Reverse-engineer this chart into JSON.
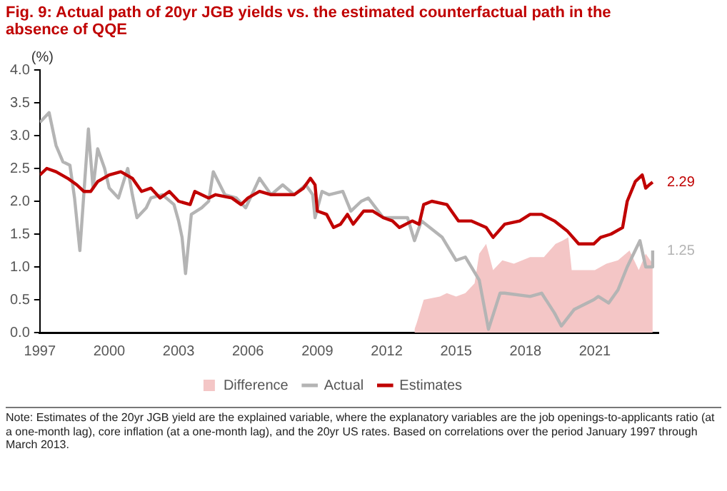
{
  "chart_data": {
    "type": "line",
    "title": "Fig. 9: Actual path of 20yr JGB yields vs. the estimated counterfactual path in the absence of QQE",
    "ylabel": "(%)",
    "xlim": [
      1997,
      2023.75
    ],
    "xticks": [
      1997,
      2000,
      2003,
      2006,
      2009,
      2012,
      2015,
      2018,
      2021
    ],
    "ylim": [
      0,
      4
    ],
    "yticks": [
      {
        "value": 0,
        "label": "0.0"
      },
      0.5,
      {
        "value": 1,
        "label": "1.0"
      },
      1.5,
      {
        "value": 2,
        "label": "2.0"
      },
      2.5,
      {
        "value": 3,
        "label": "3.0"
      },
      3.5,
      {
        "value": 4,
        "label": "4.0"
      }
    ],
    "grid": false,
    "legend": "bottom",
    "marker": "none",
    "line_style": "solid",
    "series": [
      {
        "name": "Difference",
        "type": "area",
        "color": "#f4c6c6",
        "x": [
          2013.2,
          2013.3,
          2013.6,
          2014.3,
          2014.6,
          2015.0,
          2015.4,
          2015.8,
          2016.0,
          2016.3,
          2016.6,
          2017.0,
          2017.5,
          2018.2,
          2018.8,
          2019.3,
          2019.6,
          2019.85,
          2020.0,
          2020.5,
          2021.0,
          2021.5,
          2022.0,
          2022.5,
          2022.9,
          2023.2,
          2023.5
        ],
        "values": [
          0.05,
          0.15,
          0.5,
          0.55,
          0.6,
          0.55,
          0.6,
          0.75,
          1.2,
          1.35,
          0.95,
          1.1,
          1.05,
          1.15,
          1.15,
          1.35,
          1.4,
          1.45,
          0.95,
          0.95,
          0.95,
          1.05,
          1.1,
          1.25,
          0.95,
          1.2,
          1.05
        ]
      },
      {
        "name": "Actual",
        "color": "#b4b4b4",
        "x": [
          1997.0,
          1997.4,
          1997.7,
          1998.0,
          1998.3,
          1998.5,
          1998.73,
          1999.1,
          1999.3,
          1999.5,
          1999.8,
          2000.0,
          2000.4,
          2000.8,
          2001.0,
          2001.2,
          2001.6,
          2001.8,
          2002.3,
          2002.8,
          2003.0,
          2003.15,
          2003.3,
          2003.55,
          2004.0,
          2004.3,
          2004.5,
          2005.0,
          2005.5,
          2005.9,
          2006.3,
          2006.5,
          2007.0,
          2007.5,
          2008.0,
          2008.5,
          2008.8,
          2008.9,
          2009.2,
          2009.5,
          2010.1,
          2010.45,
          2010.9,
          2011.2,
          2011.85,
          2012.9,
          2013.2,
          2013.5,
          2014.4,
          2015.0,
          2015.4,
          2016.0,
          2016.4,
          2016.9,
          2017.1,
          2018.2,
          2018.7,
          2019.25,
          2019.55,
          2020.1,
          2020.95,
          2021.15,
          2021.6,
          2022.0,
          2022.4,
          2022.95,
          2023.2,
          2023.45,
          2023.5
        ],
        "values": [
          3.2,
          3.35,
          2.85,
          2.6,
          2.55,
          2.05,
          1.25,
          3.1,
          2.2,
          2.8,
          2.5,
          2.2,
          2.05,
          2.5,
          2.1,
          1.75,
          1.9,
          2.05,
          2.1,
          1.95,
          1.7,
          1.45,
          0.9,
          1.8,
          1.9,
          2.0,
          2.45,
          2.1,
          2.05,
          1.9,
          2.2,
          2.35,
          2.1,
          2.25,
          2.1,
          2.25,
          2.1,
          1.75,
          2.15,
          2.1,
          2.15,
          1.85,
          2.0,
          2.05,
          1.75,
          1.75,
          1.4,
          1.7,
          1.45,
          1.1,
          1.15,
          0.8,
          0.05,
          0.6,
          0.6,
          0.55,
          0.6,
          0.3,
          0.1,
          0.35,
          0.5,
          0.55,
          0.45,
          0.65,
          1.0,
          1.4,
          1.0,
          1.0,
          1.25
        ]
      },
      {
        "name": "Estimates",
        "color": "#c00000",
        "x": [
          1997.0,
          1997.3,
          1997.7,
          1998.2,
          1998.6,
          1998.9,
          1999.2,
          1999.5,
          2000.0,
          2000.5,
          2001.0,
          2001.4,
          2001.8,
          2002.2,
          2002.6,
          2003.0,
          2003.5,
          2003.7,
          2004.3,
          2004.6,
          2005.3,
          2005.7,
          2006.0,
          2006.5,
          2007.0,
          2007.5,
          2008.0,
          2008.4,
          2008.7,
          2008.9,
          2009.0,
          2009.4,
          2009.7,
          2010.0,
          2010.3,
          2010.55,
          2011.0,
          2011.4,
          2011.85,
          2012.25,
          2012.55,
          2013.1,
          2013.4,
          2013.6,
          2013.95,
          2014.6,
          2015.1,
          2015.65,
          2016.3,
          2016.6,
          2017.1,
          2017.75,
          2018.2,
          2018.7,
          2019.25,
          2019.8,
          2020.3,
          2020.95,
          2021.25,
          2021.7,
          2022.2,
          2022.4,
          2022.75,
          2023.05,
          2023.2,
          2023.35,
          2023.5
        ],
        "values": [
          2.4,
          2.5,
          2.45,
          2.35,
          2.25,
          2.15,
          2.15,
          2.3,
          2.4,
          2.45,
          2.35,
          2.15,
          2.2,
          2.05,
          2.15,
          2.0,
          1.95,
          2.15,
          2.05,
          2.1,
          2.05,
          1.95,
          2.05,
          2.15,
          2.1,
          2.1,
          2.1,
          2.2,
          2.35,
          2.25,
          1.85,
          1.8,
          1.6,
          1.65,
          1.8,
          1.65,
          1.85,
          1.85,
          1.75,
          1.7,
          1.6,
          1.7,
          1.65,
          1.95,
          2.0,
          1.95,
          1.7,
          1.7,
          1.6,
          1.45,
          1.65,
          1.7,
          1.8,
          1.8,
          1.7,
          1.55,
          1.35,
          1.35,
          1.45,
          1.5,
          1.6,
          2.0,
          2.3,
          2.4,
          2.2,
          2.25,
          2.29
        ]
      }
    ],
    "annotations": [
      {
        "text": "2.29",
        "x": 2023.5,
        "y": 2.29
      },
      {
        "text": "1.25",
        "x": 2023.5,
        "y": 1.25
      },
      "Note: Estimates of the 20yr JGB yield are the explained variable, where the explanatory variables are the job openings-to-applicants ratio (at a one-month lag), core inflation (at a one-month lag), and the 20yr US rates. Based on correlations over the period January 1997 through March 2013."
    ]
  }
}
